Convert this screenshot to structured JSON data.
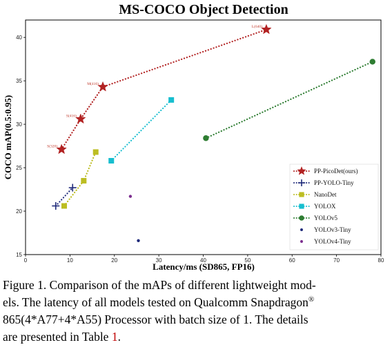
{
  "chart_data": {
    "type": "scatter",
    "title": "MS-COCO Object Detection",
    "xlabel": "Latency/ms (SD865, FP16)",
    "ylabel": "COCO mAP(0.5:0.95)",
    "xlim": [
      0,
      80
    ],
    "ylim": [
      15,
      42
    ],
    "x_ticks": [
      0,
      10,
      20,
      30,
      40,
      50,
      60,
      70,
      80
    ],
    "y_ticks": [
      15,
      20,
      25,
      30,
      35,
      40
    ],
    "grid": false,
    "legend_position": "lower-right",
    "series": [
      {
        "name": "PP-PicoDet(ours)",
        "color": "#b22222",
        "marker": "star",
        "linestyle": "dotted",
        "x": [
          8.1,
          12.4,
          17.4,
          54.2
        ],
        "y": [
          27.1,
          30.6,
          34.3,
          40.9
        ],
        "labels": [
          "S(320)",
          "S(416)",
          "M(416)",
          "L(640)"
        ]
      },
      {
        "name": "PP-YOLO-Tiny",
        "color": "#1f2a7a",
        "marker": "plus",
        "linestyle": "dotted",
        "x": [
          6.8,
          10.6
        ],
        "y": [
          20.6,
          22.7
        ]
      },
      {
        "name": "NanoDet",
        "color": "#bcbd22",
        "marker": "square",
        "linestyle": "dotted",
        "x": [
          8.7,
          13.1,
          15.8
        ],
        "y": [
          20.6,
          23.5,
          26.8
        ]
      },
      {
        "name": "YOLOX",
        "color": "#17becf",
        "marker": "square",
        "linestyle": "dotted",
        "x": [
          19.3,
          32.8
        ],
        "y": [
          25.8,
          32.8
        ]
      },
      {
        "name": "YOLOv5",
        "color": "#2e7d32",
        "marker": "circle",
        "linestyle": "dotted",
        "x": [
          40.6,
          78.1
        ],
        "y": [
          28.4,
          37.2
        ]
      },
      {
        "name": "YOLOv3-Tiny",
        "color": "#1f2a7a",
        "marker": "dot",
        "linestyle": "none",
        "x": [
          25.4
        ],
        "y": [
          16.6
        ]
      },
      {
        "name": "YOLOv4-Tiny",
        "color": "#7b2d8e",
        "marker": "dot",
        "linestyle": "none",
        "x": [
          23.6
        ],
        "y": [
          21.7
        ]
      }
    ]
  },
  "caption": {
    "line1": "Figure 1. Comparison of the mAPs of different lightweight mod-",
    "line2_pre": "els. The latency of all models tested on Qualcomm Snapdragon",
    "line2_sup": "®",
    "line3": "865(4*A77+4*A55) Processor with batch size of 1.  The details",
    "line4_pre": "are presented in Table ",
    "line4_ref": "1",
    "line4_post": "."
  }
}
